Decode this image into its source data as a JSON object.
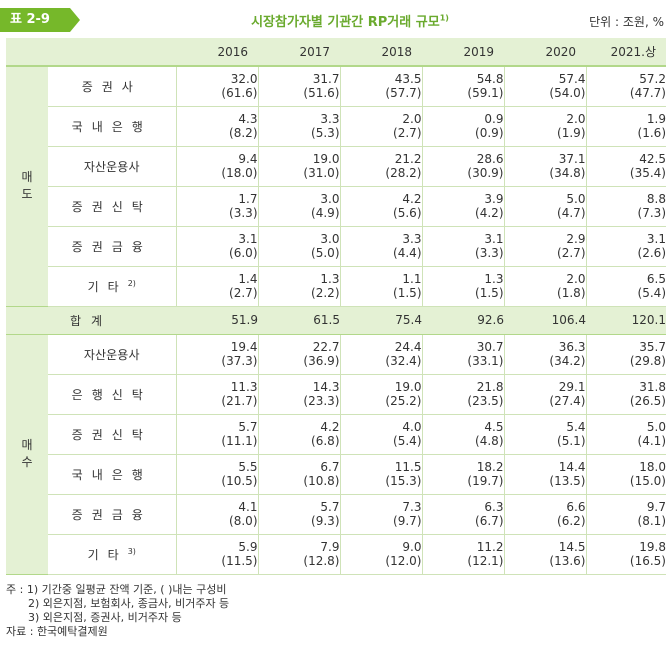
{
  "header": {
    "badge": "표 2-9",
    "title": "시장참가자별 기관간 RP거래 규모",
    "title_sup": "1)",
    "unit": "단위 : 조원, %"
  },
  "columns": [
    "2016",
    "2017",
    "2018",
    "2019",
    "2020",
    "2021.상"
  ],
  "sell": {
    "group": [
      "매",
      "도"
    ],
    "rows": [
      {
        "label": "증권사",
        "values": [
          "32.0",
          "31.7",
          "43.5",
          "54.8",
          "57.4",
          "57.2"
        ],
        "shares": [
          "(61.6)",
          "(51.6)",
          "(57.7)",
          "(59.1)",
          "(54.0)",
          "(47.7)"
        ]
      },
      {
        "label": "국내은행",
        "values": [
          "4.3",
          "3.3",
          "2.0",
          "0.9",
          "2.0",
          "1.9"
        ],
        "shares": [
          "(8.2)",
          "(5.3)",
          "(2.7)",
          "(0.9)",
          "(1.9)",
          "(1.6)"
        ]
      },
      {
        "label": "자산운용사",
        "values": [
          "9.4",
          "19.0",
          "21.2",
          "28.6",
          "37.1",
          "42.5"
        ],
        "shares": [
          "(18.0)",
          "(31.0)",
          "(28.2)",
          "(30.9)",
          "(34.8)",
          "(35.4)"
        ]
      },
      {
        "label": "증권신탁",
        "values": [
          "1.7",
          "3.0",
          "4.2",
          "3.9",
          "5.0",
          "8.8"
        ],
        "shares": [
          "(3.3)",
          "(4.9)",
          "(5.6)",
          "(4.2)",
          "(4.7)",
          "(7.3)"
        ]
      },
      {
        "label": "증권금융",
        "values": [
          "3.1",
          "3.0",
          "3.3",
          "3.1",
          "2.9",
          "3.1"
        ],
        "shares": [
          "(6.0)",
          "(5.0)",
          "(4.4)",
          "(3.3)",
          "(2.7)",
          "(2.6)"
        ]
      },
      {
        "label": "기타",
        "sup": "2)",
        "values": [
          "1.4",
          "1.3",
          "1.1",
          "1.3",
          "2.0",
          "6.5"
        ],
        "shares": [
          "(2.7)",
          "(2.2)",
          "(1.5)",
          "(1.5)",
          "(1.8)",
          "(5.4)"
        ]
      }
    ]
  },
  "total": {
    "label": "합계",
    "values": [
      "51.9",
      "61.5",
      "75.4",
      "92.6",
      "106.4",
      "120.1"
    ]
  },
  "buy": {
    "group": [
      "매",
      "수"
    ],
    "rows": [
      {
        "label": "자산운용사",
        "values": [
          "19.4",
          "22.7",
          "24.4",
          "30.7",
          "36.3",
          "35.7"
        ],
        "shares": [
          "(37.3)",
          "(36.9)",
          "(32.4)",
          "(33.1)",
          "(34.2)",
          "(29.8)"
        ]
      },
      {
        "label": "은행신탁",
        "values": [
          "11.3",
          "14.3",
          "19.0",
          "21.8",
          "29.1",
          "31.8"
        ],
        "shares": [
          "(21.7)",
          "(23.3)",
          "(25.2)",
          "(23.5)",
          "(27.4)",
          "(26.5)"
        ]
      },
      {
        "label": "증권신탁",
        "values": [
          "5.7",
          "4.2",
          "4.0",
          "4.5",
          "5.4",
          "5.0"
        ],
        "shares": [
          "(11.1)",
          "(6.8)",
          "(5.4)",
          "(4.8)",
          "(5.1)",
          "(4.1)"
        ]
      },
      {
        "label": "국내은행",
        "values": [
          "5.5",
          "6.7",
          "11.5",
          "18.2",
          "14.4",
          "18.0"
        ],
        "shares": [
          "(10.5)",
          "(10.8)",
          "(15.3)",
          "(19.7)",
          "(13.5)",
          "(15.0)"
        ]
      },
      {
        "label": "증권금융",
        "values": [
          "4.1",
          "5.7",
          "7.3",
          "6.3",
          "6.6",
          "9.7"
        ],
        "shares": [
          "(8.0)",
          "(9.3)",
          "(9.7)",
          "(6.7)",
          "(6.2)",
          "(8.1)"
        ]
      },
      {
        "label": "기타",
        "sup": "3)",
        "values": [
          "5.9",
          "7.9",
          "9.0",
          "11.2",
          "14.5",
          "19.8"
        ],
        "shares": [
          "(11.5)",
          "(12.8)",
          "(12.0)",
          "(12.1)",
          "(13.6)",
          "(16.5)"
        ]
      }
    ]
  },
  "notes": [
    "주 : 1) 기간중 일평균 잔액 기준, ( )내는 구성비",
    "2) 외은지점, 보험회사, 종금사, 비거주자 등",
    "3) 외은지점, 증권사, 비거주자 등",
    "자료 : 한국예탁결제원"
  ],
  "colors": {
    "accent": "#76b82a",
    "header_bg": "#e4f1d4",
    "title": "#6aaa2e"
  }
}
